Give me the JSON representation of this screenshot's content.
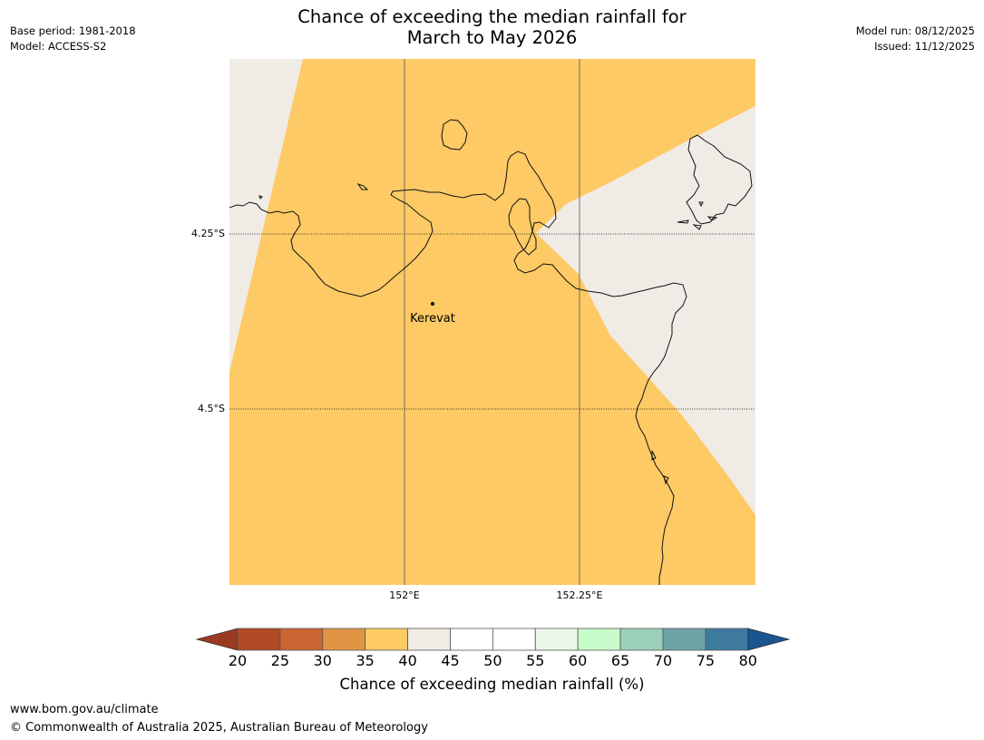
{
  "title": {
    "line1": "Chance of exceeding the median rainfall for",
    "line2": "March to May 2026"
  },
  "meta_left": {
    "base_period": "Base period: 1981-2018",
    "model": "Model: ACCESS-S2"
  },
  "meta_right": {
    "model_run": "Model run: 08/12/2025",
    "issued": "Issued: 11/12/2025"
  },
  "map": {
    "lat_labels": [
      "4.25°S",
      "4.5°S"
    ],
    "lon_labels": [
      "152°E",
      "152.25°E"
    ],
    "place_label": "Kerevat",
    "region_colors": {
      "band_35_40": "#fdca65",
      "band_40_45": "#f1ebe6",
      "coast": "#000000"
    }
  },
  "colorbar": {
    "ticks": [
      "20",
      "25",
      "30",
      "35",
      "40",
      "45",
      "50",
      "55",
      "60",
      "65",
      "70",
      "75",
      "80"
    ],
    "colors": [
      "#b04a25",
      "#cc6531",
      "#e09545",
      "#fdca65",
      "#f1ebe6",
      "#ffffff",
      "#ffffff",
      "#eaf8ea",
      "#c8fdcb",
      "#9dd0b8",
      "#6ea4a6",
      "#3d7a9e"
    ],
    "under_color": "#9a3a22",
    "over_color": "#1a558f",
    "title": "Chance of exceeding median rainfall (%)"
  },
  "footer": {
    "url": "www.bom.gov.au/climate",
    "copyright": "© Commonwealth of Australia 2025, Australian Bureau of Meteorology"
  }
}
